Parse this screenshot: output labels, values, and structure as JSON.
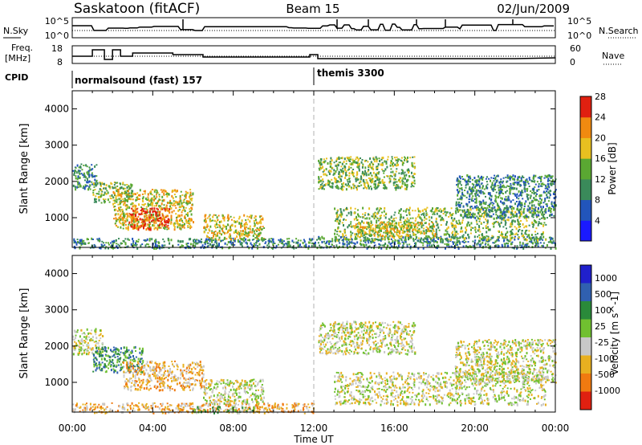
{
  "header": {
    "station": "Saskatoon (fitACF)",
    "beam": "Beam 15",
    "date": "02/Jun/2009"
  },
  "noise_panel": {
    "left_label": "N.Sky",
    "right_label": "N.Search",
    "left_ticks": [
      "10^5",
      "10^0"
    ],
    "right_ticks": [
      "10^5",
      "10^0"
    ]
  },
  "freq_panel": {
    "left_label_line1": "Freq.",
    "left_label_line2": "[MHz]",
    "right_label": "Nave",
    "left_ticks": [
      "18",
      "8"
    ],
    "right_ticks": [
      "60",
      "0"
    ]
  },
  "cpid_panel": {
    "label": "CPID",
    "modes": [
      {
        "name": "normalsound (fast) 157",
        "start_hour": 0
      },
      {
        "name": "themis 3300",
        "start_hour": 12
      }
    ]
  },
  "axes": {
    "xlabel": "Time UT",
    "ylabel": "Slant Range [km]",
    "x_ticks": [
      "00:00",
      "04:00",
      "08:00",
      "12:00",
      "16:00",
      "20:00",
      "00:00"
    ],
    "y_ticks": [
      "1000",
      "2000",
      "3000",
      "4000"
    ]
  },
  "chart_data": [
    {
      "type": "heatmap",
      "title": "",
      "quantity": "Power",
      "colorbar_label": "Power [dB]",
      "colorbar_ticks": [
        "4",
        "8",
        "12",
        "16",
        "20",
        "24",
        "28"
      ],
      "colorbar_colors": [
        "#1a1aff",
        "#2255bb",
        "#3a8a5a",
        "#5aa832",
        "#e8c020",
        "#f08a10",
        "#e02010"
      ],
      "xlim": [
        0,
        24
      ],
      "ylim": [
        180,
        4500
      ],
      "x_unit": "hours UT",
      "y_unit": "km",
      "regions": [
        {
          "t0": 0.0,
          "t1": 1.2,
          "r0": 1800,
          "r1": 2500,
          "level": 2
        },
        {
          "t0": 1.0,
          "t1": 3.0,
          "r0": 1400,
          "r1": 2000,
          "level": 3
        },
        {
          "t0": 2.0,
          "t1": 6.0,
          "r0": 700,
          "r1": 1800,
          "level": 4
        },
        {
          "t0": 2.8,
          "t1": 4.8,
          "r0": 700,
          "r1": 1300,
          "level": 6
        },
        {
          "t0": 6.5,
          "t1": 9.5,
          "r0": 400,
          "r1": 1100,
          "level": 4
        },
        {
          "t0": 0.0,
          "t1": 12.0,
          "r0": 180,
          "r1": 450,
          "level": 2
        },
        {
          "t0": 12.0,
          "t1": 24.0,
          "r0": 180,
          "r1": 500,
          "level": 2
        },
        {
          "t0": 12.2,
          "t1": 17.0,
          "r0": 1800,
          "r1": 2700,
          "level": 3
        },
        {
          "t0": 13.0,
          "t1": 23.5,
          "r0": 400,
          "r1": 1300,
          "level": 3
        },
        {
          "t0": 14.0,
          "t1": 18.0,
          "r0": 500,
          "r1": 900,
          "level": 4
        },
        {
          "t0": 19.0,
          "t1": 24.0,
          "r0": 1000,
          "r1": 2200,
          "level": 2
        }
      ]
    },
    {
      "type": "heatmap",
      "title": "",
      "quantity": "Velocity",
      "colorbar_label": "Velocity [m s^-1]",
      "colorbar_ticks": [
        "1000",
        "500",
        "100",
        "25",
        "-25",
        "-100",
        "-500",
        "-1000"
      ],
      "colorbar_colors": [
        "#2020cc",
        "#3060b0",
        "#2a8a3a",
        "#70c030",
        "#c8c8c8",
        "#e8b020",
        "#f07a10",
        "#e02010"
      ],
      "xlim": [
        0,
        24
      ],
      "ylim": [
        180,
        4500
      ],
      "x_unit": "hours UT",
      "y_unit": "km",
      "regions": [
        {
          "t0": 0.0,
          "t1": 1.5,
          "r0": 1800,
          "r1": 2500,
          "level": 4
        },
        {
          "t0": 1.0,
          "t1": 3.5,
          "r0": 1300,
          "r1": 2000,
          "level": 2
        },
        {
          "t0": 2.5,
          "t1": 6.5,
          "r0": 800,
          "r1": 1600,
          "level": 5
        },
        {
          "t0": 6.5,
          "t1": 9.5,
          "r0": 400,
          "r1": 1100,
          "level": 4
        },
        {
          "t0": 0.0,
          "t1": 12.0,
          "r0": 180,
          "r1": 450,
          "level": 5
        },
        {
          "t0": 6.0,
          "t1": 9.0,
          "r0": 180,
          "r1": 350,
          "level": 3
        },
        {
          "t0": 12.2,
          "t1": 17.0,
          "r0": 1800,
          "r1": 2700,
          "level": 4
        },
        {
          "t0": 13.0,
          "t1": 23.5,
          "r0": 400,
          "r1": 1300,
          "level": 4
        },
        {
          "t0": 19.0,
          "t1": 24.0,
          "r0": 1000,
          "r1": 2200,
          "level": 4
        }
      ]
    }
  ]
}
